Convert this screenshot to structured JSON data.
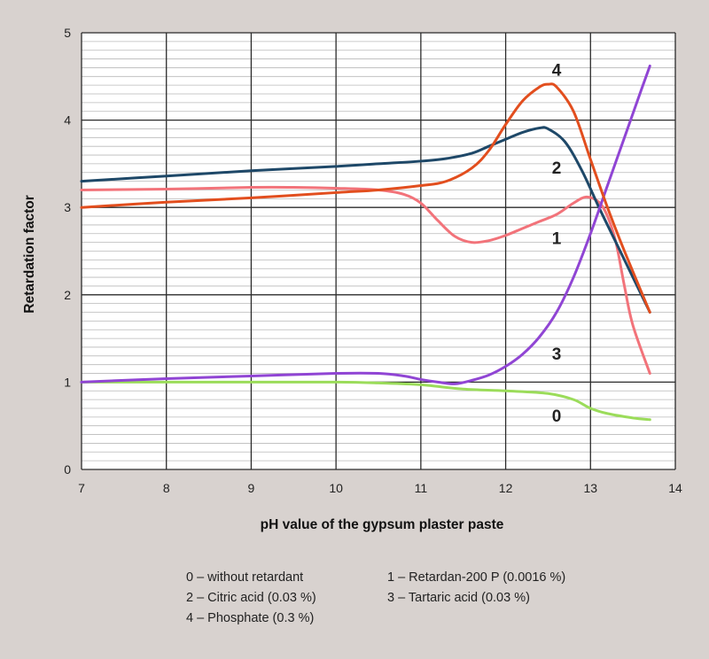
{
  "chart_data": {
    "type": "line",
    "xlabel": "pH value of the gypsum plaster paste",
    "ylabel": "Retardation factor",
    "xlim": [
      7,
      14
    ],
    "ylim": [
      0,
      5
    ],
    "xticks": [
      "7",
      "8",
      "9",
      "10",
      "11",
      "12",
      "13",
      "14"
    ],
    "yticks": [
      "0",
      "1",
      "2",
      "3",
      "4",
      "5"
    ],
    "grid": true,
    "legend_position": "below",
    "series": [
      {
        "name": "0",
        "color": "#9bdc5a",
        "x": [
          7,
          8,
          9,
          10,
          10.5,
          11,
          11.5,
          12,
          12.5,
          12.8,
          13,
          13.2,
          13.5,
          13.7
        ],
        "y": [
          1.0,
          1.0,
          1.0,
          1.0,
          0.99,
          0.97,
          0.92,
          0.9,
          0.87,
          0.8,
          0.7,
          0.64,
          0.59,
          0.57
        ]
      },
      {
        "name": "1",
        "color": "#f2737a",
        "x": [
          7,
          8,
          9,
          9.5,
          10,
          10.5,
          10.8,
          11,
          11.2,
          11.4,
          11.6,
          11.8,
          12,
          12.2,
          12.4,
          12.6,
          12.8,
          12.95,
          13.1,
          13.2,
          13.3,
          13.4,
          13.5,
          13.7
        ],
        "y": [
          3.2,
          3.21,
          3.23,
          3.23,
          3.22,
          3.2,
          3.15,
          3.05,
          2.85,
          2.67,
          2.6,
          2.62,
          2.68,
          2.76,
          2.84,
          2.92,
          3.05,
          3.12,
          3.06,
          2.9,
          2.6,
          2.1,
          1.65,
          1.1
        ]
      },
      {
        "name": "2",
        "color": "#1e4868",
        "x": [
          7,
          8,
          9,
          10,
          10.5,
          11,
          11.3,
          11.6,
          11.8,
          12,
          12.2,
          12.4,
          12.5,
          12.7,
          12.9,
          13.1,
          13.3,
          13.5,
          13.7
        ],
        "y": [
          3.3,
          3.36,
          3.42,
          3.47,
          3.5,
          3.53,
          3.56,
          3.62,
          3.7,
          3.78,
          3.86,
          3.91,
          3.9,
          3.75,
          3.42,
          3.0,
          2.6,
          2.2,
          1.8
        ]
      },
      {
        "name": "3",
        "color": "#9045d4",
        "x": [
          7,
          8,
          9,
          10,
          10.5,
          10.8,
          11,
          11.2,
          11.4,
          11.6,
          11.8,
          12,
          12.2,
          12.4,
          12.6,
          12.8,
          13,
          13.2,
          13.4,
          13.6,
          13.7
        ],
        "y": [
          1.0,
          1.04,
          1.07,
          1.1,
          1.1,
          1.07,
          1.03,
          1.0,
          0.98,
          1.02,
          1.08,
          1.18,
          1.32,
          1.52,
          1.8,
          2.2,
          2.7,
          3.25,
          3.8,
          4.35,
          4.62
        ]
      },
      {
        "name": "4",
        "color": "#e24e1e",
        "x": [
          7,
          8,
          9,
          10,
          10.5,
          11,
          11.3,
          11.6,
          11.8,
          12,
          12.2,
          12.4,
          12.5,
          12.6,
          12.8,
          13,
          13.2,
          13.4,
          13.7
        ],
        "y": [
          3.0,
          3.06,
          3.11,
          3.17,
          3.2,
          3.25,
          3.3,
          3.45,
          3.65,
          3.95,
          4.22,
          4.38,
          4.41,
          4.38,
          4.1,
          3.55,
          3.0,
          2.5,
          1.8
        ]
      }
    ],
    "annotations": [
      {
        "text": "4",
        "x": 12.6,
        "y": 4.58
      },
      {
        "text": "2",
        "x": 12.6,
        "y": 3.46
      },
      {
        "text": "1",
        "x": 12.6,
        "y": 2.65
      },
      {
        "text": "3",
        "x": 12.6,
        "y": 1.33
      },
      {
        "text": "0",
        "x": 12.6,
        "y": 0.62
      }
    ]
  },
  "legend": [
    {
      "text": "0 – without retardant"
    },
    {
      "text": "1 – Retardan-200 P (0.0016 %)"
    },
    {
      "text": "2 – Citric acid (0.03 %)"
    },
    {
      "text": "3 – Tartaric acid (0.03 %)"
    },
    {
      "text": "4 – Phosphate (0.3 %)"
    }
  ]
}
